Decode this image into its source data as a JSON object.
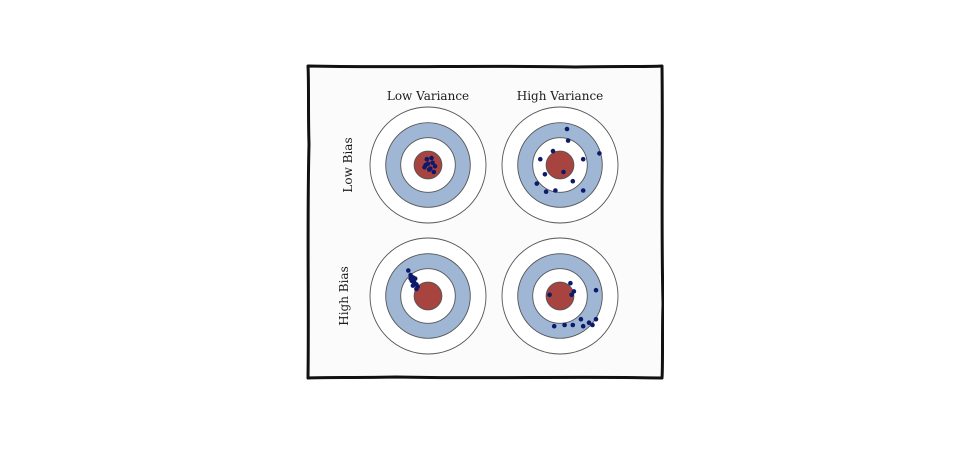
{
  "labels": {
    "col_low_variance": "Low Variance",
    "col_high_variance": "High Variance",
    "row_low_bias": "Low Bias",
    "row_high_bias": "High Bias"
  },
  "colors": {
    "frame_fill": "#fbfbfb",
    "frame_stroke": "#111111",
    "outer_ring": "#ffffff",
    "middle_ring": "#9fb6d5",
    "inner_ring": "#ffffff",
    "bullseye": "#a8443f",
    "ring_stroke": "#555555",
    "dots": "#0d1a6b"
  },
  "panels": [
    {
      "name": "low-bias-low-variance",
      "bias": "Low Bias",
      "variance": "Low Variance",
      "shots": [
        [
          -0.02,
          0.1
        ],
        [
          0.06,
          0.12
        ],
        [
          0.0,
          0.02
        ],
        [
          0.08,
          0.04
        ],
        [
          -0.04,
          0.0
        ],
        [
          0.04,
          -0.06
        ],
        [
          0.12,
          -0.02
        ],
        [
          0.1,
          -0.12
        ],
        [
          -0.06,
          -0.04
        ],
        [
          0.02,
          -0.08
        ]
      ]
    },
    {
      "name": "low-bias-high-variance",
      "bias": "Low Bias",
      "variance": "High Variance",
      "shots": [
        [
          0.12,
          0.62
        ],
        [
          0.14,
          0.42
        ],
        [
          0.4,
          0.1
        ],
        [
          0.68,
          0.2
        ],
        [
          -0.34,
          0.1
        ],
        [
          -0.12,
          0.24
        ],
        [
          -0.26,
          -0.16
        ],
        [
          -0.4,
          -0.32
        ],
        [
          0.06,
          -0.12
        ],
        [
          0.22,
          -0.28
        ],
        [
          -0.08,
          -0.44
        ],
        [
          0.4,
          -0.44
        ],
        [
          -0.24,
          -0.46
        ]
      ]
    },
    {
      "name": "high-bias-low-variance",
      "bias": "High Bias",
      "variance": "Low Variance",
      "shots": [
        [
          -0.34,
          0.44
        ],
        [
          -0.3,
          0.36
        ],
        [
          -0.26,
          0.32
        ],
        [
          -0.24,
          0.24
        ],
        [
          -0.2,
          0.2
        ],
        [
          -0.28,
          0.26
        ],
        [
          -0.22,
          0.3
        ],
        [
          -0.18,
          0.16
        ],
        [
          -0.26,
          0.18
        ],
        [
          -0.2,
          0.12
        ],
        [
          -0.3,
          0.3
        ]
      ]
    },
    {
      "name": "high-bias-high-variance",
      "bias": "High Bias",
      "variance": "High Variance",
      "shots": [
        [
          0.18,
          0.22
        ],
        [
          0.24,
          0.08
        ],
        [
          0.2,
          0.02
        ],
        [
          -0.18,
          0.02
        ],
        [
          0.62,
          0.1
        ],
        [
          0.36,
          -0.4
        ],
        [
          0.4,
          -0.52
        ],
        [
          0.5,
          -0.46
        ],
        [
          0.62,
          -0.4
        ],
        [
          0.56,
          -0.5
        ],
        [
          0.22,
          -0.5
        ],
        [
          0.08,
          -0.5
        ],
        [
          -0.1,
          -0.52
        ]
      ]
    }
  ]
}
